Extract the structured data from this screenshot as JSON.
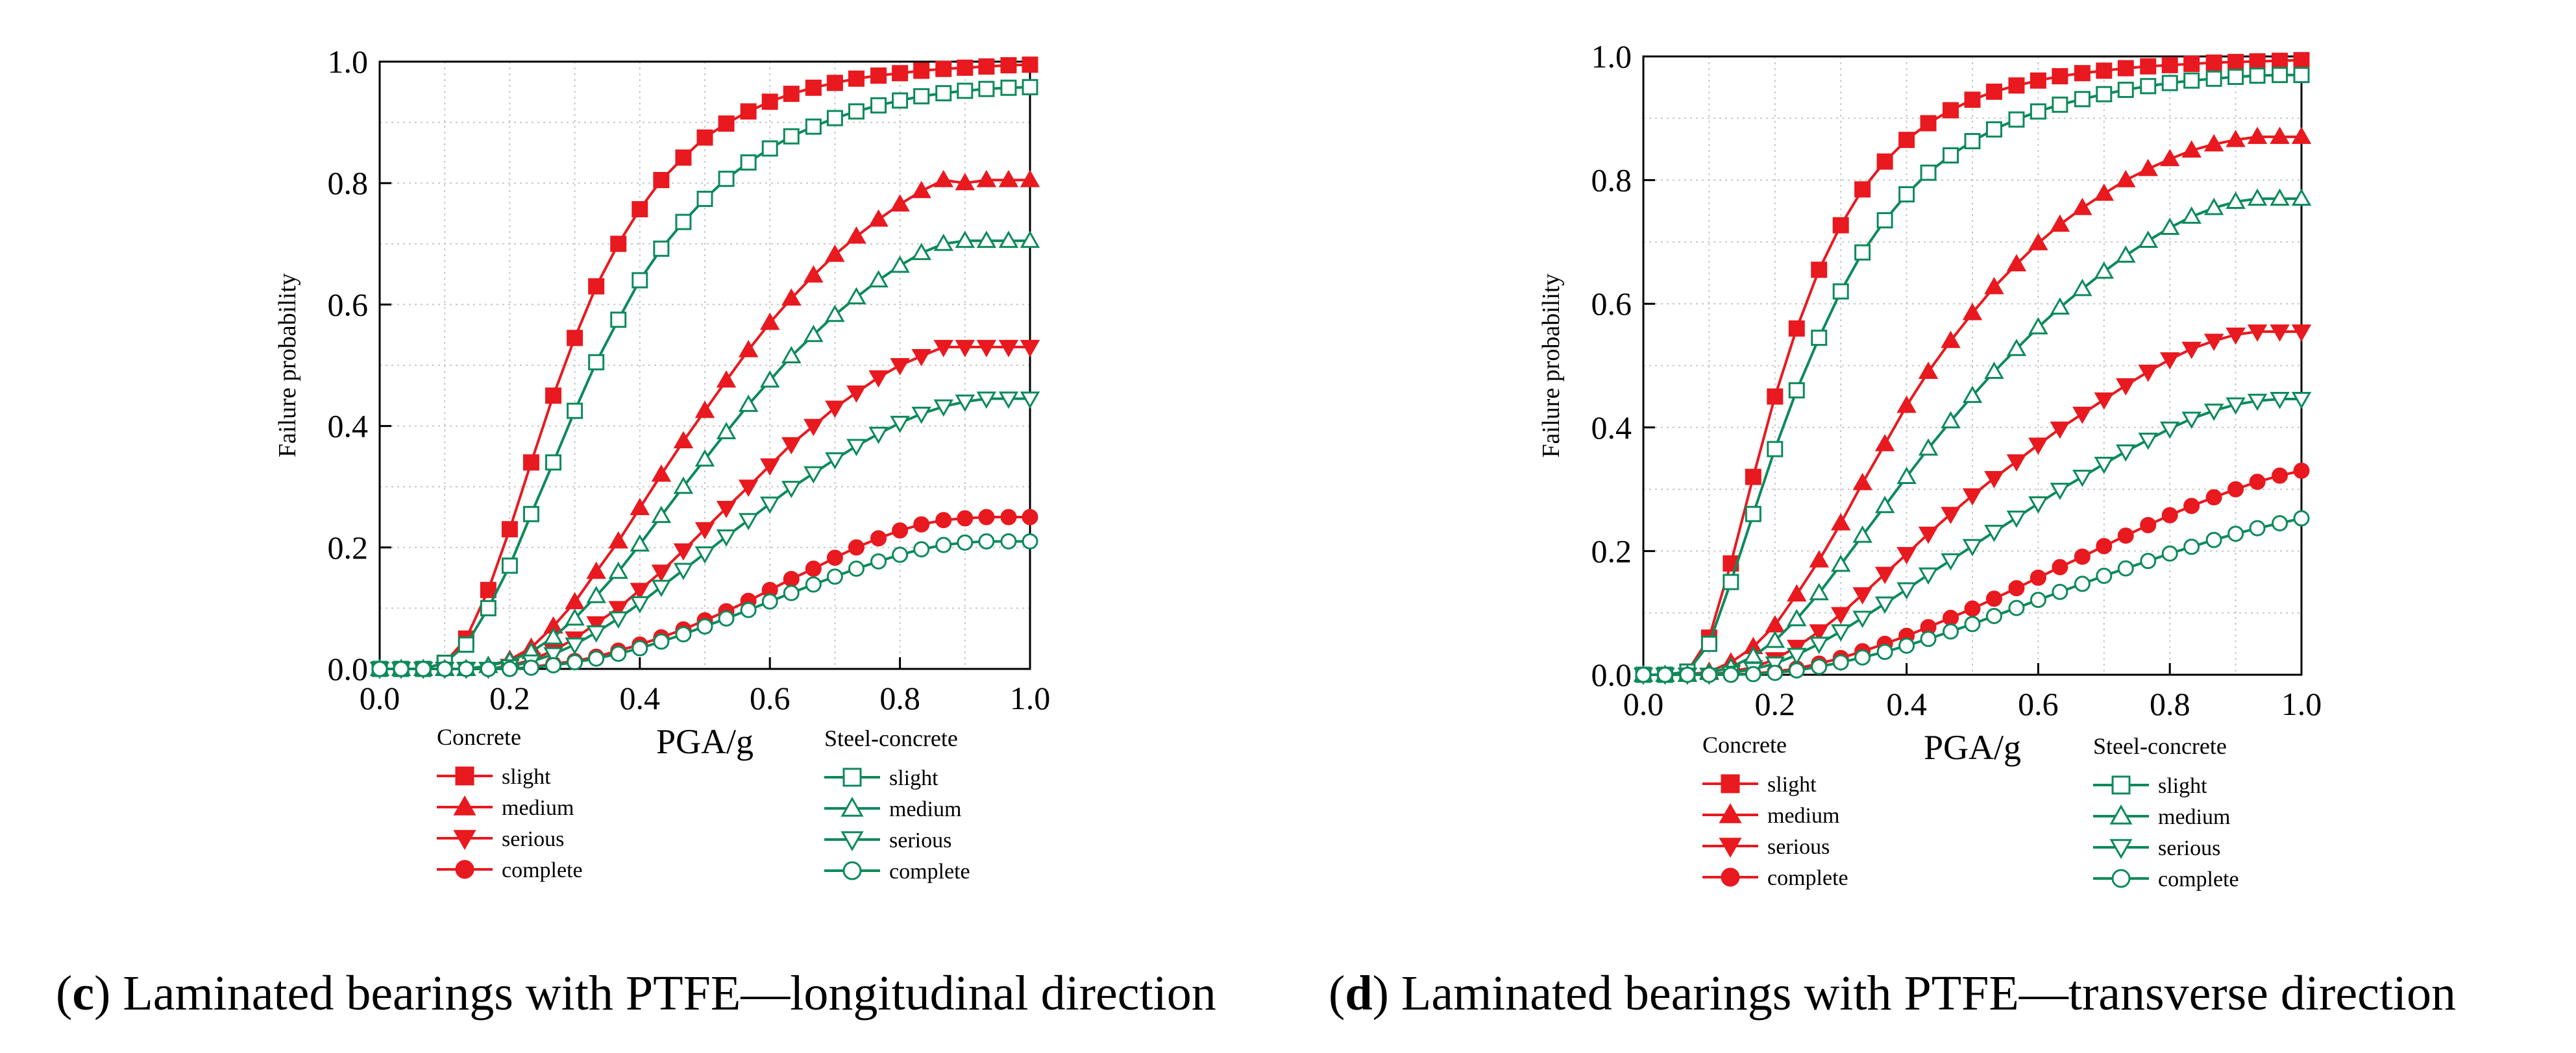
{
  "colors": {
    "concrete": "#e8191f",
    "steel": "#0c8a5b",
    "grid": "#c8c8c8",
    "axis": "#000000"
  },
  "legend_titles": {
    "concrete": "Concrete",
    "steel": "Steel-concrete"
  },
  "chart_data": [
    {
      "id": "c",
      "type": "line",
      "caption_label": "c",
      "caption_text": "Laminated bearings with PTFE—longitudinal direction",
      "xlabel": "PGA/g",
      "ylabel": "Failure probability",
      "xlim": [
        0,
        1
      ],
      "ylim": [
        0,
        1
      ],
      "xticks": [
        0,
        0.2,
        0.4,
        0.6,
        0.8,
        1.0
      ],
      "yticks": [
        0,
        0.2,
        0.4,
        0.6,
        0.8,
        1.0
      ],
      "xtick_labels": [
        "0.0",
        "0.2",
        "0.4",
        "0.6",
        "0.8",
        "1.0"
      ],
      "ytick_labels": [
        "0.0",
        "0.2",
        "0.4",
        "0.6",
        "0.8",
        "1.0"
      ],
      "grid": true,
      "x": [
        0,
        0.033,
        0.067,
        0.1,
        0.133,
        0.167,
        0.2,
        0.233,
        0.267,
        0.3,
        0.333,
        0.367,
        0.4,
        0.433,
        0.467,
        0.5,
        0.533,
        0.567,
        0.6,
        0.633,
        0.667,
        0.7,
        0.733,
        0.767,
        0.8,
        0.833,
        0.867,
        0.9,
        0.933,
        0.967,
        1.0
      ],
      "series": [
        {
          "group": "concrete",
          "name": "slight",
          "marker": "square",
          "filled": true,
          "values": [
            0,
            0,
            0,
            0.01,
            0.05,
            0.13,
            0.23,
            0.34,
            0.45,
            0.545,
            0.63,
            0.7,
            0.757,
            0.805,
            0.842,
            0.875,
            0.898,
            0.918,
            0.934,
            0.947,
            0.957,
            0.965,
            0.972,
            0.977,
            0.981,
            0.985,
            0.988,
            0.99,
            0.992,
            0.994,
            0.995
          ]
        },
        {
          "group": "concrete",
          "name": "medium",
          "marker": "triangle-up",
          "filled": true,
          "values": [
            0,
            0,
            0,
            0,
            0,
            0.005,
            0.015,
            0.035,
            0.07,
            0.11,
            0.16,
            0.21,
            0.265,
            0.32,
            0.375,
            0.425,
            0.475,
            0.525,
            0.57,
            0.61,
            0.648,
            0.682,
            0.712,
            0.74,
            0.765,
            0.787,
            0.805,
            0.8,
            0.805,
            0.805,
            0.805
          ]
        },
        {
          "group": "concrete",
          "name": "serious",
          "marker": "triangle-down",
          "filled": true,
          "values": [
            0,
            0,
            0,
            0,
            0,
            0,
            0.005,
            0.015,
            0.03,
            0.05,
            0.075,
            0.1,
            0.13,
            0.16,
            0.195,
            0.23,
            0.265,
            0.3,
            0.335,
            0.37,
            0.4,
            0.43,
            0.455,
            0.48,
            0.5,
            0.515,
            0.53,
            0.53,
            0.53,
            0.53,
            0.53
          ]
        },
        {
          "group": "concrete",
          "name": "complete",
          "marker": "circle",
          "filled": true,
          "values": [
            0,
            0,
            0,
            0,
            0,
            0,
            0,
            0.003,
            0.008,
            0.013,
            0.02,
            0.03,
            0.04,
            0.052,
            0.065,
            0.08,
            0.095,
            0.112,
            0.13,
            0.148,
            0.165,
            0.183,
            0.2,
            0.215,
            0.228,
            0.238,
            0.245,
            0.248,
            0.25,
            0.25,
            0.25
          ]
        },
        {
          "group": "steel",
          "name": "slight",
          "marker": "square",
          "filled": false,
          "values": [
            0,
            0,
            0,
            0.01,
            0.04,
            0.1,
            0.17,
            0.255,
            0.34,
            0.425,
            0.505,
            0.575,
            0.64,
            0.692,
            0.736,
            0.774,
            0.807,
            0.834,
            0.857,
            0.877,
            0.893,
            0.907,
            0.918,
            0.928,
            0.936,
            0.943,
            0.948,
            0.952,
            0.955,
            0.957,
            0.958
          ]
        },
        {
          "group": "steel",
          "name": "medium",
          "marker": "triangle-up",
          "filled": false,
          "values": [
            0,
            0,
            0,
            0,
            0,
            0.005,
            0.013,
            0.028,
            0.052,
            0.083,
            0.12,
            0.16,
            0.205,
            0.252,
            0.3,
            0.345,
            0.39,
            0.435,
            0.475,
            0.515,
            0.55,
            0.583,
            0.612,
            0.64,
            0.664,
            0.685,
            0.7,
            0.705,
            0.705,
            0.705,
            0.705
          ]
        },
        {
          "group": "steel",
          "name": "serious",
          "marker": "triangle-down",
          "filled": false,
          "values": [
            0,
            0,
            0,
            0,
            0,
            0,
            0.004,
            0.012,
            0.024,
            0.04,
            0.06,
            0.083,
            0.108,
            0.135,
            0.163,
            0.19,
            0.218,
            0.245,
            0.272,
            0.298,
            0.322,
            0.345,
            0.367,
            0.387,
            0.405,
            0.42,
            0.432,
            0.44,
            0.445,
            0.445,
            0.445
          ]
        },
        {
          "group": "steel",
          "name": "complete",
          "marker": "circle",
          "filled": false,
          "values": [
            0,
            0,
            0,
            0,
            0,
            0,
            0,
            0.002,
            0.006,
            0.011,
            0.017,
            0.025,
            0.034,
            0.045,
            0.057,
            0.07,
            0.083,
            0.097,
            0.111,
            0.125,
            0.139,
            0.152,
            0.165,
            0.177,
            0.188,
            0.197,
            0.204,
            0.208,
            0.21,
            0.21,
            0.21
          ]
        }
      ]
    },
    {
      "id": "d",
      "type": "line",
      "caption_label": "d",
      "caption_text": "Laminated bearings with PTFE—transverse direction",
      "xlabel": "PGA/g",
      "ylabel": "Failure probability",
      "xlim": [
        0,
        1
      ],
      "ylim": [
        0,
        1
      ],
      "xticks": [
        0,
        0.2,
        0.4,
        0.6,
        0.8,
        1.0
      ],
      "yticks": [
        0,
        0.2,
        0.4,
        0.6,
        0.8,
        1.0
      ],
      "xtick_labels": [
        "0.0",
        "0.2",
        "0.4",
        "0.6",
        "0.8",
        "1.0"
      ],
      "ytick_labels": [
        "0.0",
        "0.2",
        "0.4",
        "0.6",
        "0.8",
        "1.0"
      ],
      "grid": true,
      "x": [
        0,
        0.033,
        0.067,
        0.1,
        0.133,
        0.167,
        0.2,
        0.233,
        0.267,
        0.3,
        0.333,
        0.367,
        0.4,
        0.433,
        0.467,
        0.5,
        0.533,
        0.567,
        0.6,
        0.633,
        0.667,
        0.7,
        0.733,
        0.767,
        0.8,
        0.833,
        0.867,
        0.9,
        0.933,
        0.967,
        1.0
      ],
      "series": [
        {
          "group": "concrete",
          "name": "slight",
          "marker": "square",
          "filled": true,
          "values": [
            0,
            0,
            0.005,
            0.06,
            0.18,
            0.32,
            0.45,
            0.56,
            0.655,
            0.727,
            0.785,
            0.83,
            0.865,
            0.892,
            0.913,
            0.93,
            0.943,
            0.953,
            0.961,
            0.968,
            0.973,
            0.977,
            0.981,
            0.984,
            0.986,
            0.988,
            0.99,
            0.991,
            0.992,
            0.993,
            0.994
          ]
        },
        {
          "group": "concrete",
          "name": "medium",
          "marker": "triangle-up",
          "filled": true,
          "values": [
            0,
            0,
            0,
            0.005,
            0.02,
            0.045,
            0.08,
            0.13,
            0.185,
            0.245,
            0.31,
            0.373,
            0.435,
            0.49,
            0.54,
            0.585,
            0.627,
            0.664,
            0.698,
            0.728,
            0.755,
            0.778,
            0.8,
            0.818,
            0.834,
            0.848,
            0.858,
            0.865,
            0.87,
            0.87,
            0.87
          ]
        },
        {
          "group": "concrete",
          "name": "serious",
          "marker": "triangle-down",
          "filled": true,
          "values": [
            0,
            0,
            0,
            0,
            0.005,
            0.012,
            0.025,
            0.045,
            0.07,
            0.098,
            0.13,
            0.163,
            0.195,
            0.228,
            0.26,
            0.29,
            0.318,
            0.345,
            0.372,
            0.398,
            0.422,
            0.445,
            0.468,
            0.49,
            0.51,
            0.527,
            0.54,
            0.55,
            0.555,
            0.555,
            0.555
          ]
        },
        {
          "group": "concrete",
          "name": "complete",
          "marker": "circle",
          "filled": true,
          "values": [
            0,
            0,
            0,
            0,
            0,
            0.002,
            0.005,
            0.01,
            0.018,
            0.027,
            0.038,
            0.05,
            0.063,
            0.077,
            0.092,
            0.107,
            0.123,
            0.14,
            0.157,
            0.174,
            0.191,
            0.208,
            0.225,
            0.242,
            0.258,
            0.273,
            0.287,
            0.3,
            0.312,
            0.322,
            0.33
          ]
        },
        {
          "group": "steel",
          "name": "slight",
          "marker": "square",
          "filled": false,
          "values": [
            0,
            0,
            0.005,
            0.05,
            0.15,
            0.26,
            0.365,
            0.46,
            0.545,
            0.62,
            0.683,
            0.735,
            0.777,
            0.812,
            0.84,
            0.863,
            0.882,
            0.898,
            0.911,
            0.922,
            0.931,
            0.939,
            0.946,
            0.952,
            0.957,
            0.961,
            0.964,
            0.967,
            0.969,
            0.97,
            0.97
          ]
        },
        {
          "group": "steel",
          "name": "medium",
          "marker": "triangle-up",
          "filled": false,
          "values": [
            0,
            0,
            0,
            0.003,
            0.012,
            0.03,
            0.055,
            0.09,
            0.132,
            0.178,
            0.225,
            0.273,
            0.32,
            0.366,
            0.41,
            0.451,
            0.49,
            0.527,
            0.562,
            0.594,
            0.624,
            0.652,
            0.678,
            0.702,
            0.723,
            0.741,
            0.755,
            0.765,
            0.77,
            0.77,
            0.77
          ]
        },
        {
          "group": "steel",
          "name": "serious",
          "marker": "triangle-down",
          "filled": false,
          "values": [
            0,
            0,
            0,
            0,
            0.003,
            0.009,
            0.018,
            0.032,
            0.05,
            0.07,
            0.092,
            0.115,
            0.138,
            0.162,
            0.185,
            0.208,
            0.231,
            0.254,
            0.277,
            0.299,
            0.32,
            0.341,
            0.361,
            0.38,
            0.398,
            0.414,
            0.427,
            0.437,
            0.443,
            0.446,
            0.446
          ]
        },
        {
          "group": "steel",
          "name": "complete",
          "marker": "circle",
          "filled": false,
          "values": [
            0,
            0,
            0,
            0,
            0,
            0.001,
            0.003,
            0.007,
            0.013,
            0.02,
            0.028,
            0.037,
            0.047,
            0.058,
            0.07,
            0.082,
            0.095,
            0.108,
            0.121,
            0.134,
            0.147,
            0.16,
            0.172,
            0.184,
            0.196,
            0.207,
            0.218,
            0.228,
            0.237,
            0.245,
            0.253
          ]
        }
      ]
    }
  ]
}
